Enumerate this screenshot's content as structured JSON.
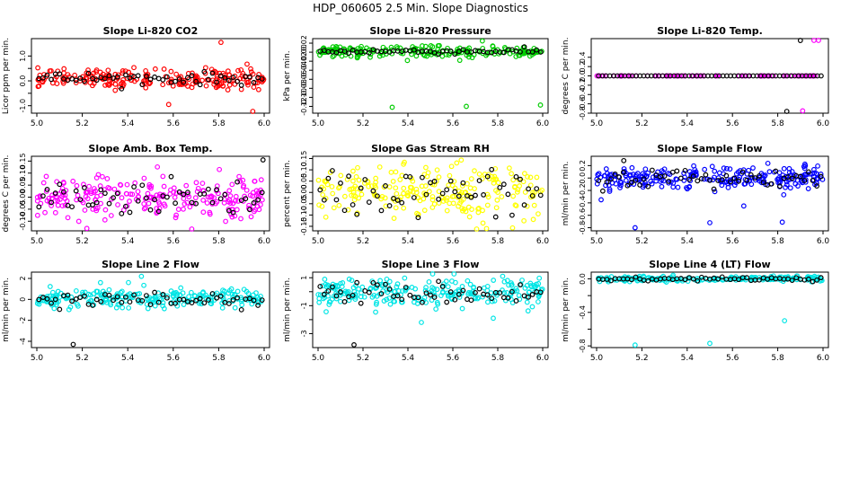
{
  "page_title": "HDP_060605  2.5 Min. Slope Diagnostics",
  "chart_data": [
    {
      "type": "scatter",
      "title": "Slope Li-820 CO2",
      "xlabel": "",
      "ylabel": "Licor ppm per min.",
      "xlim": [
        5.0,
        6.0
      ],
      "ylim": [
        -1.3,
        1.7
      ],
      "xticks": [
        5.0,
        5.2,
        5.4,
        5.6,
        5.8,
        6.0
      ],
      "yticks": [
        -1.0,
        -0.5,
        0.0,
        0.5,
        1.0
      ],
      "ytick_labels": [
        "-1.0",
        "",
        "0.0",
        "",
        "1.0"
      ],
      "color": "#ff0000",
      "center": 0.1,
      "spread": 0.2,
      "n": 220,
      "outliers": [
        [
          5.81,
          1.55
        ],
        [
          5.95,
          -1.25
        ],
        [
          5.58,
          -0.95
        ]
      ],
      "black_center": 0.1,
      "black_spread": 0.12,
      "black_n": 55
    },
    {
      "type": "scatter",
      "title": "Slope Li-820 Pressure",
      "xlabel": "",
      "ylabel": "kPa per min.",
      "xlim": [
        5.0,
        6.0
      ],
      "ylim": [
        -0.135,
        0.03
      ],
      "xticks": [
        5.0,
        5.2,
        5.4,
        5.6,
        5.8,
        6.0
      ],
      "yticks": [
        -0.12,
        -0.1,
        -0.08,
        -0.06,
        -0.04,
        -0.02,
        0.0,
        0.02
      ],
      "ytick_labels": [
        "-0.12",
        "-0.10",
        "-0.08",
        "-0.06",
        "-0.04",
        "-0.02",
        "0.00",
        "0.02"
      ],
      "color": "#00cc00",
      "center": 0.002,
      "spread": 0.006,
      "n": 200,
      "outliers": [
        [
          5.33,
          -0.122
        ],
        [
          5.66,
          -0.12
        ],
        [
          5.99,
          -0.117
        ]
      ],
      "black_center": 0.002,
      "black_spread": 0.003,
      "black_n": 55
    },
    {
      "type": "scatter",
      "title": "Slope Li-820 Temp.",
      "xlabel": "",
      "ylabel": "degrees C per min.",
      "xlim": [
        5.0,
        6.0
      ],
      "ylim": [
        -0.8,
        0.8
      ],
      "xticks": [
        5.0,
        5.2,
        5.4,
        5.6,
        5.8,
        6.0
      ],
      "yticks": [
        -0.8,
        -0.6,
        -0.4,
        -0.2,
        0.0,
        0.2,
        0.4
      ],
      "ytick_labels": [
        "-0.8",
        "-0.6",
        "-0.4",
        "-0.2",
        "0.0",
        "0.2",
        "0.4"
      ],
      "color": "#ff00ff",
      "center": 0.0,
      "spread": 0.0,
      "n": 70,
      "outliers": [
        [
          5.96,
          0.78
        ],
        [
          5.98,
          0.78
        ],
        [
          5.91,
          -0.75
        ]
      ],
      "black_center": 0.0,
      "black_spread": 0.0,
      "black_n": 60,
      "black_outliers": [
        [
          5.9,
          0.76
        ],
        [
          5.84,
          -0.77
        ]
      ]
    },
    {
      "type": "scatter",
      "title": "Slope Amb. Box Temp.",
      "xlabel": "",
      "ylabel": "degrees C per min.",
      "xlim": [
        5.0,
        6.0
      ],
      "ylim": [
        -0.14,
        0.17
      ],
      "xticks": [
        5.0,
        5.2,
        5.4,
        5.6,
        5.8,
        6.0
      ],
      "yticks": [
        -0.1,
        -0.05,
        0.0,
        0.05,
        0.1,
        0.15
      ],
      "ytick_labels": [
        "-0.10",
        "-0.05",
        "0.00",
        "0.05",
        "0.10",
        "0.15"
      ],
      "color": "#ff00ff",
      "center": 0.0,
      "spread": 0.045,
      "n": 230,
      "outliers": [
        [
          5.22,
          -0.13
        ]
      ],
      "black_center": 0.0,
      "black_spread": 0.04,
      "black_n": 55,
      "black_outliers": [
        [
          5.995,
          0.155
        ]
      ]
    },
    {
      "type": "scatter",
      "title": "Slope Gas Stream RH",
      "xlabel": "",
      "ylabel": "percent per min.",
      "xlim": [
        5.0,
        6.0
      ],
      "ylim": [
        -0.17,
        0.16
      ],
      "xticks": [
        5.0,
        5.2,
        5.4,
        5.6,
        5.8,
        6.0
      ],
      "yticks": [
        -0.15,
        -0.1,
        -0.05,
        0.0,
        0.05,
        0.1,
        0.15
      ],
      "ytick_labels": [
        "-0.15",
        "-0.10",
        "-0.05",
        "0.00",
        "0.05",
        "0.10",
        "0.15"
      ],
      "color": "#ffff00",
      "center": 0.0,
      "spread": 0.06,
      "n": 220,
      "outliers": [
        [
          5.75,
          -0.16
        ]
      ],
      "black_center": 0.0,
      "black_spread": 0.05,
      "black_n": 55
    },
    {
      "type": "scatter",
      "title": "Slope Sample Flow",
      "xlabel": "",
      "ylabel": "ml/min per min.",
      "xlim": [
        5.0,
        6.0
      ],
      "ylim": [
        -0.85,
        0.35
      ],
      "xticks": [
        5.0,
        5.2,
        5.4,
        5.6,
        5.8,
        6.0
      ],
      "yticks": [
        -0.8,
        -0.6,
        -0.4,
        -0.2,
        0.0,
        0.2
      ],
      "ytick_labels": [
        "-0.8",
        "-0.6",
        "-0.4",
        "-0.2",
        "0.0",
        "0.2"
      ],
      "color": "#0000ff",
      "center": 0.0,
      "spread": 0.09,
      "n": 240,
      "outliers": [
        [
          5.17,
          -0.8
        ],
        [
          5.5,
          -0.72
        ],
        [
          5.82,
          -0.71
        ],
        [
          5.65,
          -0.45
        ],
        [
          5.02,
          -0.35
        ]
      ],
      "black_center": 0.0,
      "black_spread": 0.08,
      "black_n": 55,
      "black_outliers": [
        [
          5.12,
          0.28
        ]
      ]
    },
    {
      "type": "scatter",
      "title": "Slope Line 2 Flow",
      "xlabel": "",
      "ylabel": "ml/min per min.",
      "xlim": [
        5.0,
        6.0
      ],
      "ylim": [
        -4.6,
        2.6
      ],
      "xticks": [
        5.0,
        5.2,
        5.4,
        5.6,
        5.8,
        6.0
      ],
      "yticks": [
        -4,
        -2,
        0,
        2
      ],
      "ytick_labels": [
        "-4",
        "-2",
        "0",
        "2"
      ],
      "color": "#00e5e5",
      "center": 0.1,
      "spread": 0.45,
      "n": 230,
      "outliers": [
        [
          5.46,
          2.2
        ],
        [
          5.28,
          1.6
        ]
      ],
      "black_center": 0.0,
      "black_spread": 0.4,
      "black_n": 55,
      "black_outliers": [
        [
          5.16,
          -4.3
        ]
      ]
    },
    {
      "type": "scatter",
      "title": "Slope Line 3 Flow",
      "xlabel": "",
      "ylabel": "ml/min per min.",
      "xlim": [
        5.0,
        6.0
      ],
      "ylim": [
        -4.0,
        1.4
      ],
      "xticks": [
        5.0,
        5.2,
        5.4,
        5.6,
        5.8,
        6.0
      ],
      "yticks": [
        -3,
        -2,
        -1,
        0,
        1
      ],
      "ytick_labels": [
        "-3",
        "",
        "-1",
        "",
        "1"
      ],
      "color": "#00e5e5",
      "center": -0.1,
      "spread": 0.55,
      "n": 240,
      "outliers": [
        [
          5.46,
          -2.2
        ],
        [
          5.78,
          -1.9
        ]
      ],
      "black_center": -0.1,
      "black_spread": 0.4,
      "black_n": 55,
      "black_outliers": [
        [
          5.16,
          -3.8
        ]
      ]
    },
    {
      "type": "scatter",
      "title": "Slope Line 4 (LT) Flow",
      "xlabel": "",
      "ylabel": "ml/min per min.",
      "xlim": [
        5.0,
        6.0
      ],
      "ylim": [
        -0.82,
        0.08
      ],
      "xticks": [
        5.0,
        5.2,
        5.4,
        5.6,
        5.8,
        6.0
      ],
      "yticks": [
        -0.8,
        -0.6,
        -0.4,
        -0.2,
        0.0
      ],
      "ytick_labels": [
        "-0.8",
        "",
        "-0.4",
        "",
        "0.0"
      ],
      "color": "#00e5e5",
      "center": 0.0,
      "spread": 0.015,
      "n": 200,
      "outliers": [
        [
          5.17,
          -0.79
        ],
        [
          5.5,
          -0.77
        ],
        [
          5.83,
          -0.5
        ]
      ],
      "black_center": 0.0,
      "black_spread": 0.01,
      "black_n": 55
    }
  ]
}
